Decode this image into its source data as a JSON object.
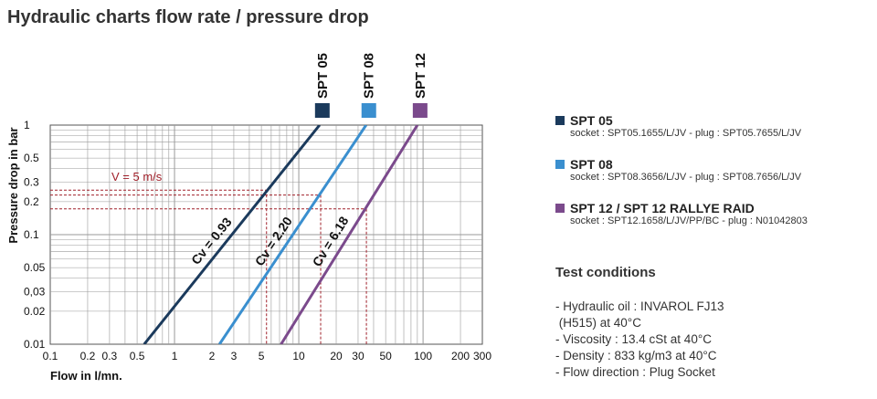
{
  "title": "Hydraulic charts flow rate / pressure drop",
  "chart_data": {
    "type": "line",
    "xlabel": "Flow in l/mn.",
    "ylabel": "Pressure drop in bar",
    "xscale": "log",
    "yscale": "log",
    "xlim": [
      0.1,
      300
    ],
    "ylim": [
      0.01,
      1
    ],
    "grid": true,
    "x_ticks": [
      0.1,
      0.2,
      0.3,
      0.5,
      1,
      2,
      3,
      5,
      10,
      20,
      30,
      50,
      100,
      200,
      300
    ],
    "x_tick_labels": [
      "0.1",
      "0.2",
      "0.3",
      "0.5",
      "1",
      "2",
      "3",
      "5",
      "10",
      "20",
      "30",
      "50",
      "100",
      "200",
      "300"
    ],
    "y_ticks": [
      0.01,
      0.02,
      0.03,
      0.05,
      0.1,
      0.2,
      0.3,
      0.5,
      1
    ],
    "y_tick_labels": [
      "0.01",
      "0.02",
      "0,03",
      "0.05",
      "0.1",
      "0.2",
      "0.3",
      "0.5",
      "1"
    ],
    "series": [
      {
        "name": "SPT 05",
        "color": "#1b3a5c",
        "label": "Cv = 0.93",
        "x": [
          0.57,
          14.7
        ],
        "y": [
          0.01,
          1
        ]
      },
      {
        "name": "SPT 08",
        "color": "#3a8fcf",
        "label": "Cv = 2.20",
        "x": [
          2.3,
          34.8
        ],
        "y": [
          0.01,
          1
        ]
      },
      {
        "name": "SPT 12",
        "color": "#7b4a8c",
        "label": "Cv = 6.18",
        "x": [
          7.2,
          90
        ],
        "y": [
          0.01,
          1
        ]
      }
    ],
    "annotation": {
      "text": "V = 5 m/s",
      "color": "#a0202a",
      "points": [
        {
          "x": 5.5,
          "y": 0.255
        },
        {
          "x": 15,
          "y": 0.23
        },
        {
          "x": 35,
          "y": 0.172
        }
      ]
    }
  },
  "legend": [
    {
      "name": "SPT 05",
      "detail": "socket : SPT05.1655/L/JV - plug : SPT05.7655/L/JV",
      "color": "#1b3a5c"
    },
    {
      "name": "SPT 08",
      "detail": "socket : SPT08.3656/L/JV - plug : SPT08.7656/L/JV",
      "color": "#3a8fcf"
    },
    {
      "name": "SPT 12 / SPT 12 RALLYE RAID",
      "detail": "socket : SPT12.1658/L/JV/PP/BC - plug : N01042803",
      "color": "#7b4a8c"
    }
  ],
  "test_conditions": {
    "title": "Test conditions",
    "items": [
      "- Hydraulic oil : INVAROL FJ13",
      " (H515) at 40°C",
      "- Viscosity : 13.4 cSt at 40°C",
      "- Density : 833 kg/m3 at 40°C",
      "- Flow direction : Plug Socket"
    ]
  }
}
